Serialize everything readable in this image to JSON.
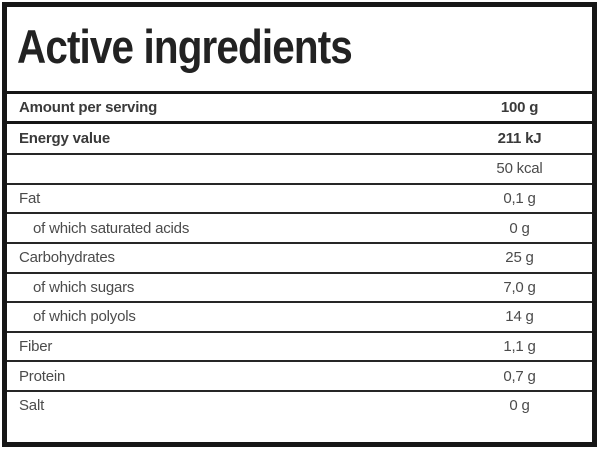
{
  "title": "Active ingredients",
  "table": {
    "rows": [
      {
        "label": "Amount per serving",
        "value": "100 g"
      },
      {
        "label": "Energy value",
        "value": "211 kJ"
      },
      {
        "label": "",
        "value": "50 kcal"
      },
      {
        "label": "Fat",
        "value": "0,1 g"
      },
      {
        "label": "of which saturated acids",
        "value": "0 g"
      },
      {
        "label": "Carbohydrates",
        "value": "25 g"
      },
      {
        "label": "of which sugars",
        "value": "7,0 g"
      },
      {
        "label": "of which polyols",
        "value": "14 g"
      },
      {
        "label": "Fiber",
        "value": "1,1 g"
      },
      {
        "label": "Protein",
        "value": "0,7 g"
      },
      {
        "label": "Salt",
        "value": "0 g"
      }
    ]
  },
  "colors": {
    "frame": "#161616",
    "separator": "#262626",
    "title_text": "#222222",
    "bold_text": "#3a3a3a",
    "regular_text": "#4b4b4b",
    "background": "#ffffff"
  }
}
